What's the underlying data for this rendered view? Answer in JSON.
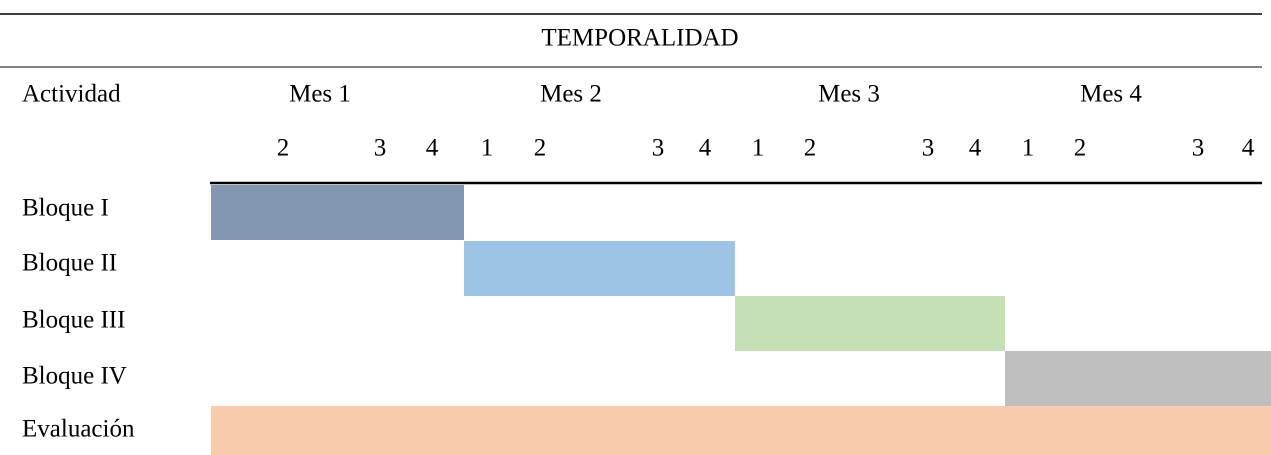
{
  "table": {
    "title": "TEMPORALIDAD",
    "first_header": "Actividad",
    "months": [
      {
        "name": "Mes 1",
        "weeks": [
          2,
          3,
          4
        ]
      },
      {
        "name": "Mes 2",
        "weeks": [
          1,
          2,
          3,
          4
        ]
      },
      {
        "name": "Mes 3",
        "weeks": [
          1,
          2,
          3,
          4
        ]
      },
      {
        "name": "Mes 4",
        "weeks": [
          1,
          2,
          3,
          4
        ]
      }
    ],
    "rows": [
      {
        "label": "Bloque I",
        "color": "#8497b0"
      },
      {
        "label": "Bloque II",
        "color": "#9dc3e6"
      },
      {
        "label": "Bloque III",
        "color": "#c5e0b4"
      },
      {
        "label": "Bloque IV",
        "color": "#bfbfbf"
      },
      {
        "label": "Evaluación",
        "color": "#f8cbad"
      }
    ]
  }
}
